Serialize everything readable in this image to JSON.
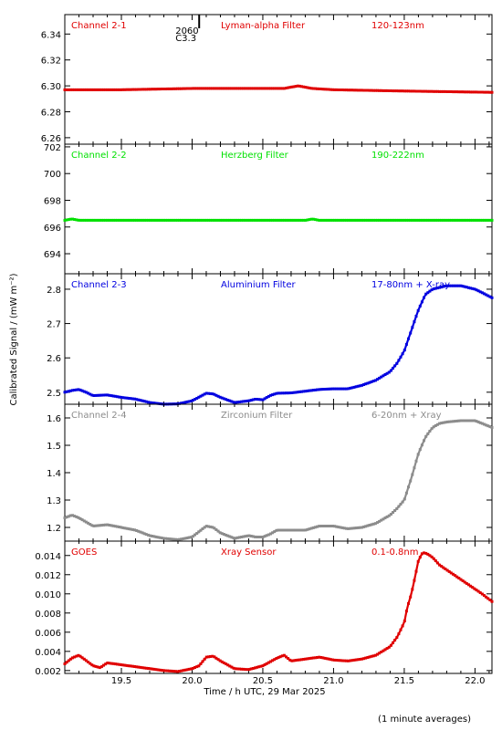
{
  "chart_data": {
    "type": "scatter",
    "xlabel": "Time / h UTC, 29 Mar 2025",
    "ylabel": "Calibrated Signal / (mW m⁻²)",
    "xlim": [
      19.1,
      22.12
    ],
    "x_ticks": [
      "19.5",
      "20.0",
      "20.5",
      "21.0",
      "21.5",
      "22.0"
    ],
    "event_marker": {
      "x": 20.05,
      "label_top": "2060",
      "label_bottom": "C3.3"
    },
    "panels": [
      {
        "channel": "Channel 2-1",
        "filter": "Lyman-alpha Filter",
        "band": "120-123nm",
        "color": "#e00000",
        "ylim": [
          6.255,
          6.355
        ],
        "yticks": [
          "6.34",
          "6.32",
          "6.30",
          "6.28",
          "6.26"
        ],
        "x": [
          19.1,
          19.5,
          20.0,
          20.5,
          20.65,
          20.75,
          20.85,
          21.0,
          21.5,
          22.12
        ],
        "y": [
          6.297,
          6.297,
          6.298,
          6.298,
          6.298,
          6.3,
          6.298,
          6.297,
          6.296,
          6.295
        ]
      },
      {
        "channel": "Channel 2-2",
        "filter": "Herzberg Filter",
        "band": "190-222nm",
        "color": "#00e000",
        "ylim": [
          692.5,
          702.2
        ],
        "yticks": [
          "702",
          "700",
          "698",
          "696",
          "694"
        ],
        "x": [
          19.1,
          19.15,
          19.2,
          20.0,
          20.8,
          20.85,
          20.9,
          22.12
        ],
        "y": [
          696.5,
          696.6,
          696.5,
          696.5,
          696.5,
          696.6,
          696.5,
          696.5
        ]
      },
      {
        "channel": "Channel 2-3",
        "filter": "Aluminium Filter",
        "band": "17-80nm + X-ray",
        "color": "#0000e0",
        "ylim": [
          2.465,
          2.845
        ],
        "yticks": [
          "2.8",
          "2.7",
          "2.6",
          "2.5"
        ],
        "x": [
          19.1,
          19.15,
          19.2,
          19.25,
          19.3,
          19.4,
          19.5,
          19.6,
          19.7,
          19.8,
          19.9,
          20.0,
          20.1,
          20.15,
          20.2,
          20.3,
          20.4,
          20.45,
          20.5,
          20.55,
          20.6,
          20.7,
          20.8,
          20.9,
          21.0,
          21.1,
          21.2,
          21.3,
          21.4,
          21.45,
          21.5,
          21.55,
          21.6,
          21.65,
          21.7,
          21.75,
          21.8,
          21.9,
          22.0,
          22.05,
          22.12
        ],
        "y": [
          2.5,
          2.505,
          2.508,
          2.5,
          2.49,
          2.492,
          2.485,
          2.48,
          2.47,
          2.465,
          2.466,
          2.475,
          2.497,
          2.495,
          2.485,
          2.47,
          2.475,
          2.48,
          2.478,
          2.49,
          2.497,
          2.498,
          2.503,
          2.508,
          2.51,
          2.51,
          2.52,
          2.535,
          2.56,
          2.585,
          2.62,
          2.68,
          2.74,
          2.785,
          2.8,
          2.805,
          2.81,
          2.81,
          2.8,
          2.79,
          2.775
        ]
      },
      {
        "channel": "Channel 2-4",
        "filter": "Zirconium Filter",
        "band": "6-20nm + Xray",
        "color": "#8c8c8c",
        "ylim": [
          1.15,
          1.65
        ],
        "yticks": [
          "1.6",
          "1.5",
          "1.4",
          "1.3",
          "1.2"
        ],
        "x": [
          19.1,
          19.15,
          19.2,
          19.3,
          19.4,
          19.5,
          19.6,
          19.7,
          19.8,
          19.9,
          20.0,
          20.1,
          20.15,
          20.2,
          20.3,
          20.4,
          20.45,
          20.5,
          20.55,
          20.6,
          20.7,
          20.8,
          20.9,
          21.0,
          21.1,
          21.2,
          21.3,
          21.4,
          21.45,
          21.5,
          21.55,
          21.6,
          21.65,
          21.7,
          21.75,
          21.8,
          21.9,
          22.0,
          22.05,
          22.12
        ],
        "y": [
          1.235,
          1.245,
          1.235,
          1.205,
          1.21,
          1.2,
          1.19,
          1.17,
          1.16,
          1.155,
          1.165,
          1.205,
          1.2,
          1.18,
          1.16,
          1.17,
          1.165,
          1.165,
          1.175,
          1.19,
          1.19,
          1.19,
          1.205,
          1.205,
          1.195,
          1.2,
          1.215,
          1.245,
          1.27,
          1.3,
          1.38,
          1.47,
          1.53,
          1.565,
          1.58,
          1.585,
          1.59,
          1.59,
          1.58,
          1.565
        ]
      },
      {
        "channel": "GOES",
        "filter": "Xray Sensor",
        "band": "0.1-0.8nm",
        "color": "#e00000",
        "ylim": [
          0.0017,
          0.0155
        ],
        "yticks": [
          "0.014",
          "0.012",
          "0.010",
          "0.008",
          "0.006",
          "0.004",
          "0.002"
        ],
        "x": [
          19.1,
          19.15,
          19.2,
          19.3,
          19.35,
          19.4,
          19.5,
          19.6,
          19.7,
          19.8,
          19.9,
          20.0,
          20.05,
          20.1,
          20.15,
          20.2,
          20.3,
          20.4,
          20.5,
          20.6,
          20.65,
          20.7,
          20.8,
          20.9,
          21.0,
          21.1,
          21.2,
          21.3,
          21.4,
          21.45,
          21.5,
          21.52,
          21.55,
          21.58,
          21.6,
          21.63,
          21.66,
          21.7,
          21.75,
          21.8,
          21.9,
          22.0,
          22.05,
          22.12
        ],
        "y": [
          0.0027,
          0.0033,
          0.0036,
          0.0025,
          0.0023,
          0.0028,
          0.0026,
          0.0024,
          0.0022,
          0.002,
          0.0019,
          0.0022,
          0.0025,
          0.0034,
          0.0035,
          0.003,
          0.0022,
          0.0021,
          0.0025,
          0.0033,
          0.0036,
          0.003,
          0.0032,
          0.0034,
          0.0031,
          0.003,
          0.0032,
          0.0036,
          0.0045,
          0.0055,
          0.007,
          0.0085,
          0.01,
          0.012,
          0.0135,
          0.0143,
          0.0142,
          0.0138,
          0.013,
          0.0125,
          0.0115,
          0.0105,
          0.01,
          0.0092
        ]
      }
    ]
  },
  "footer": {
    "note": "(1 minute averages)"
  }
}
